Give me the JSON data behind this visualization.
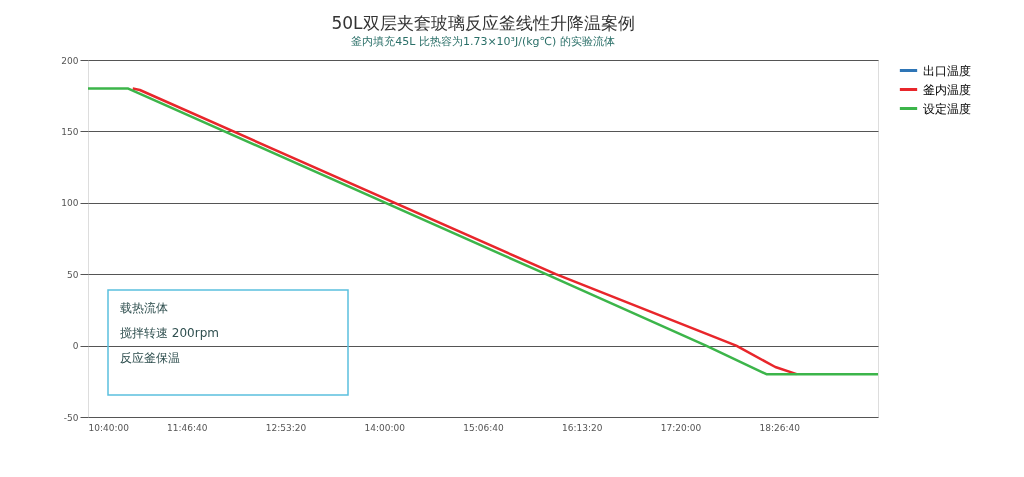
{
  "chart_data": {
    "type": "line",
    "title": "50L双层夹套玻璃反应釜线性升降温案例",
    "subtitle": "釜内填充45L 比热容为1.73×10³J/(kg℃) 的实验流体",
    "annotations": [
      "载热流体",
      "搅拌转速 200rpm",
      "反应釜保温"
    ],
    "series": [
      {
        "name": "出口温度",
        "color": "#2e75b6"
      },
      {
        "name": "釜内温度",
        "color": "#e8262b",
        "x": [
          11.17,
          11.25,
          15.93,
          17.96,
          18.4,
          18.64
        ],
        "values": [
          180,
          179,
          50,
          0,
          -15,
          -20
        ]
      },
      {
        "name": "设定温度",
        "color": "#3cb54a",
        "x": [
          10.6667,
          11.12,
          15.82,
          17.62,
          18.3,
          19.5556
        ],
        "values": [
          180,
          180,
          50,
          0,
          -20,
          -20
        ]
      }
    ],
    "xlim": [
      10.6667,
      19.5556
    ],
    "xticks": [
      {
        "value": 10.6667,
        "label": "10:40:00"
      },
      {
        "value": 11.7778,
        "label": "11:46:40"
      },
      {
        "value": 12.8889,
        "label": "12:53:20"
      },
      {
        "value": 14.0,
        "label": "14:00:00"
      },
      {
        "value": 15.1111,
        "label": "15:06:40"
      },
      {
        "value": 16.2222,
        "label": "16:13:20"
      },
      {
        "value": 17.3333,
        "label": "17:20:00"
      },
      {
        "value": 18.4444,
        "label": "18:26:40"
      }
    ],
    "ylim": [
      -50,
      200
    ],
    "yticks": [
      -50,
      0,
      50,
      100,
      150,
      200
    ],
    "grid": "y",
    "legend": "right",
    "line_style": "solid",
    "marker": "none"
  }
}
